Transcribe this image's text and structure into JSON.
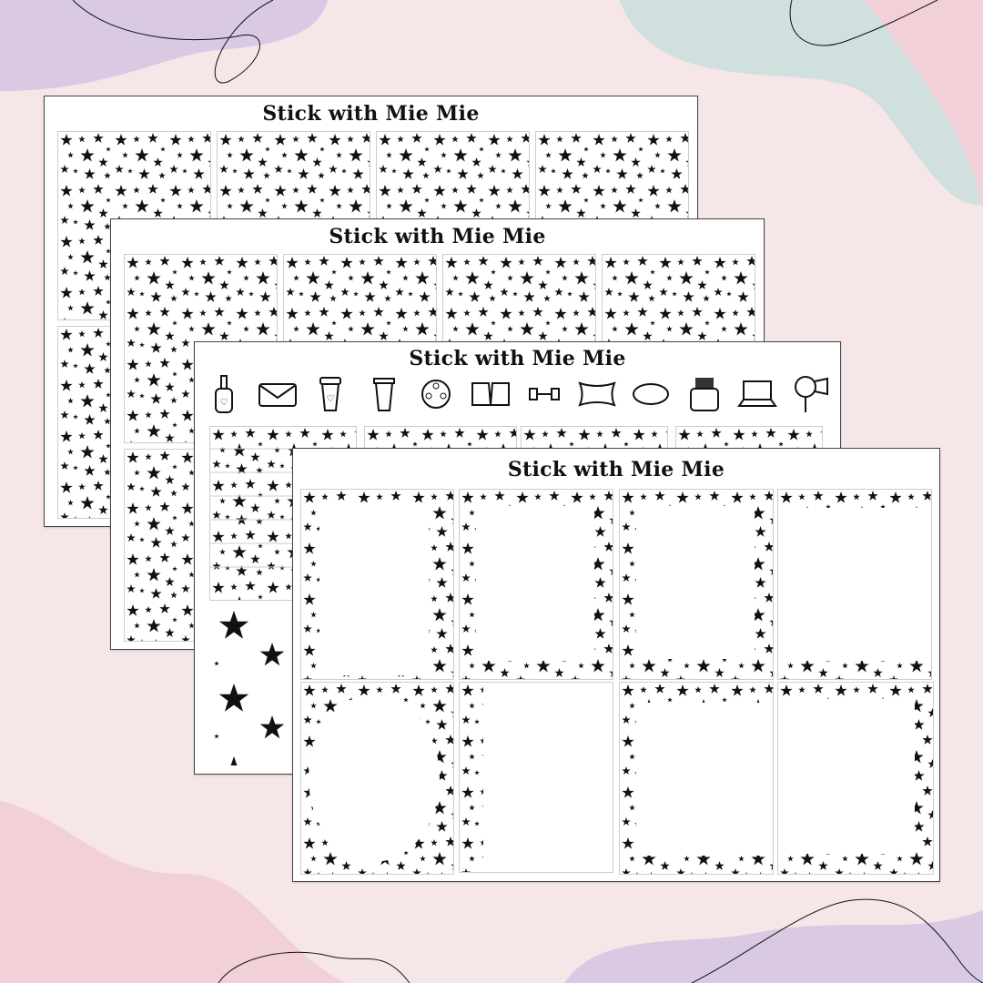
{
  "brand": {
    "title": "Stick with Mie Mie"
  },
  "colors": {
    "background": "#f6e6e8",
    "lavender": "#d9c9e2",
    "teal": "#cfe0df",
    "pink": "#f2d0d8",
    "ink": "#111111"
  },
  "sheets": [
    {
      "title": "Stick with Mie Mie",
      "pattern": "full-star-boxes"
    },
    {
      "title": "Stick with Mie Mie",
      "pattern": "full-star-boxes"
    },
    {
      "title": "Stick with Mie Mie",
      "pattern": "icons-and-strips",
      "icons": [
        "nail-polish-icon",
        "envelope-icon",
        "coffee-cup-icon",
        "trash-can-icon",
        "film-reel-icon",
        "open-book-icon",
        "dumbbells-icon",
        "pillow-icon",
        "sleep-mask-icon",
        "wallet-icon",
        "laptop-icon",
        "hair-dryer-icon"
      ]
    },
    {
      "title": "Stick with Mie Mie",
      "pattern": "star-frame-boxes"
    }
  ]
}
